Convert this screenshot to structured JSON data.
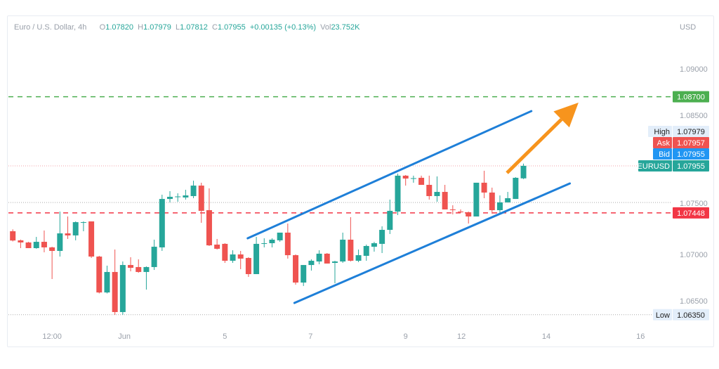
{
  "header": {
    "symbol_title": "Euro / U.S. Dollar, 4h",
    "open_label": "O",
    "open": "1.07820",
    "high_label": "H",
    "high": "1.07979",
    "low_label": "L",
    "low": "1.07812",
    "close_label": "C",
    "close": "1.07955",
    "change": "+0.00135 (+0.13%)",
    "vol_label": "Vol",
    "volume": "23.752K"
  },
  "colors": {
    "up": "#26a69a",
    "down": "#ef5350",
    "trendline": "#1e7fd8",
    "arrow": "#f7941d",
    "target": "#4caf50",
    "support": "#f23645",
    "bid": "#2196f3"
  },
  "chart_data": {
    "type": "candlestick",
    "title": "Euro / U.S. Dollar, 4h",
    "currency": "USD",
    "ylim": [
      1.0618,
      1.0966
    ],
    "y_ticks": [
      "1.09000",
      "1.08500",
      "1.07500",
      "1.07000",
      "1.06500"
    ],
    "x_ticks": [
      {
        "label": "12:00",
        "index": 6
      },
      {
        "label": "Jun",
        "index": 15.2
      },
      {
        "label": "5",
        "index": 28.0
      },
      {
        "label": "7",
        "index": 38.9
      },
      {
        "label": "9",
        "index": 51.0
      },
      {
        "label": "12",
        "index": 58.1
      },
      {
        "label": "14",
        "index": 68.9
      },
      {
        "label": "16",
        "index": 80.9
      }
    ],
    "candles": [
      [
        1.0725,
        1.0727,
        1.0714,
        1.0715
      ],
      [
        1.07152,
        1.0716,
        1.07068,
        1.07129
      ],
      [
        1.07129,
        1.07136,
        1.07068,
        1.07068
      ],
      [
        1.07068,
        1.07189,
        1.07061,
        1.07136
      ],
      [
        1.07136,
        1.07258,
        1.07023,
        1.07076
      ],
      [
        1.07076,
        1.07083,
        1.06735,
        1.07038
      ],
      [
        1.07038,
        1.07462,
        1.06977,
        1.07227
      ],
      [
        1.07227,
        1.07409,
        1.07167,
        1.07205
      ],
      [
        1.07205,
        1.07356,
        1.07152,
        1.07348
      ],
      [
        1.07341,
        1.07356,
        1.0725,
        1.07348
      ],
      [
        1.07356,
        1.07356,
        1.06962,
        1.06977
      ],
      [
        1.06977,
        1.06985,
        1.0658,
        1.0659
      ],
      [
        1.0659,
        1.06879,
        1.0658,
        1.06811
      ],
      [
        1.06811,
        1.07053,
        1.0635,
        1.06379
      ],
      [
        1.06379,
        1.06924,
        1.0635,
        1.06886
      ],
      [
        1.06886,
        1.0697,
        1.06818,
        1.06856
      ],
      [
        1.06864,
        1.06947,
        1.06803,
        1.06811
      ],
      [
        1.06811,
        1.06871,
        1.06621,
        1.06864
      ],
      [
        1.06864,
        1.07159,
        1.06833,
        1.07083
      ],
      [
        1.07076,
        1.07644,
        1.07038,
        1.07598
      ],
      [
        1.07598,
        1.07682,
        1.07561,
        1.07621
      ],
      [
        1.07621,
        1.07659,
        1.07568,
        1.07625
      ],
      [
        1.07614,
        1.07697,
        1.07591,
        1.07636
      ],
      [
        1.07629,
        1.07795,
        1.07606,
        1.07742
      ],
      [
        1.07742,
        1.07773,
        1.07341,
        1.0747
      ],
      [
        1.07477,
        1.07712,
        1.07091,
        1.07098
      ],
      [
        1.07106,
        1.07167,
        1.07053,
        1.07061
      ],
      [
        1.07114,
        1.07121,
        1.06909,
        1.06932
      ],
      [
        1.06932,
        1.07045,
        1.06909,
        1.07
      ],
      [
        1.07,
        1.07038,
        1.06841,
        1.06955
      ],
      [
        1.06962,
        1.0697,
        1.06758,
        1.06788
      ],
      [
        1.06788,
        1.07189,
        1.06788,
        1.07114
      ],
      [
        1.07114,
        1.07174,
        1.07076,
        1.07121
      ],
      [
        1.07121,
        1.07174,
        1.07076,
        1.07159
      ],
      [
        1.07152,
        1.07235,
        1.07136,
        1.07235
      ],
      [
        1.07235,
        1.07333,
        1.06955,
        1.06992
      ],
      [
        1.06992,
        1.07,
        1.06674,
        1.06697
      ],
      [
        1.06697,
        1.06886,
        1.0666,
        1.06886
      ],
      [
        1.06886,
        1.06947,
        1.06826,
        1.06932
      ],
      [
        1.06924,
        1.07045,
        1.06894,
        1.07008
      ],
      [
        1.07008,
        1.07015,
        1.06902,
        1.06902
      ],
      [
        1.06909,
        1.06932,
        1.06689,
        1.06924
      ],
      [
        1.06924,
        1.07235,
        1.06909,
        1.07159
      ],
      [
        1.07159,
        1.07402,
        1.06924,
        1.06932
      ],
      [
        1.06932,
        1.07053,
        1.06917,
        1.06992
      ],
      [
        1.06985,
        1.07106,
        1.06932,
        1.07091
      ],
      [
        1.07083,
        1.07136,
        1.0703,
        1.07121
      ],
      [
        1.07114,
        1.07303,
        1.07015,
        1.07265
      ],
      [
        1.07265,
        1.07591,
        1.0722,
        1.0747
      ],
      [
        1.07462,
        1.07871,
        1.07424,
        1.07849
      ],
      [
        1.07849,
        1.07856,
        1.07742,
        1.07818
      ],
      [
        1.07818,
        1.07849,
        1.07773,
        1.07822
      ],
      [
        1.07826,
        1.07849,
        1.0775,
        1.0775
      ],
      [
        1.0775,
        1.07849,
        1.07591,
        1.07629
      ],
      [
        1.07629,
        1.07841,
        1.07568,
        1.07674
      ],
      [
        1.07674,
        1.0775,
        1.07485,
        1.07485
      ],
      [
        1.07485,
        1.0753,
        1.07432,
        1.0748
      ],
      [
        1.07462,
        1.07485,
        1.07447,
        1.07455
      ],
      [
        1.07455,
        1.07462,
        1.07333,
        1.07409
      ],
      [
        1.07409,
        1.07773,
        1.07409,
        1.07773
      ],
      [
        1.07773,
        1.07902,
        1.07606,
        1.07667
      ],
      [
        1.07667,
        1.0772,
        1.07439,
        1.07477
      ],
      [
        1.07477,
        1.07636,
        1.07439,
        1.07561
      ],
      [
        1.07561,
        1.07674,
        1.07561,
        1.07606
      ],
      [
        1.07598,
        1.07833,
        1.07598,
        1.07826
      ],
      [
        1.0782,
        1.07979,
        1.07812,
        1.07955
      ]
    ],
    "trendlines": [
      {
        "name": "upper-channel",
        "from": [
          30.9,
          1.07174
        ],
        "to": [
          67.0,
          1.08545
        ]
      },
      {
        "name": "lower-channel",
        "from": [
          36.85,
          1.06477
        ],
        "to": [
          71.9,
          1.07765
        ]
      }
    ],
    "arrow": {
      "from": [
        63.9,
        1.07879
      ],
      "to": [
        73.0,
        1.08636
      ]
    },
    "levels": {
      "target": 1.087,
      "support": 1.07448,
      "current": 1.07955,
      "dotted": 1.0756,
      "low": 1.0635
    },
    "price_labels": [
      {
        "name": "target",
        "text": "1.08700",
        "price": 1.087
      },
      {
        "name": "high",
        "tag": "High",
        "text": "1.07979",
        "price": 1.07979
      },
      {
        "name": "ask",
        "tag": "Ask",
        "text": "1.07957",
        "price": 1.07957
      },
      {
        "name": "bid",
        "tag": "Bid",
        "text": "1.07955",
        "price": 1.07955
      },
      {
        "name": "symbol",
        "tag": "EURUSD",
        "text": "1.07955",
        "price": 1.07955
      },
      {
        "name": "support",
        "text": "1.07448",
        "price": 1.07448
      },
      {
        "name": "low",
        "tag": "Low",
        "text": "1.06350",
        "price": 1.0635
      }
    ]
  }
}
